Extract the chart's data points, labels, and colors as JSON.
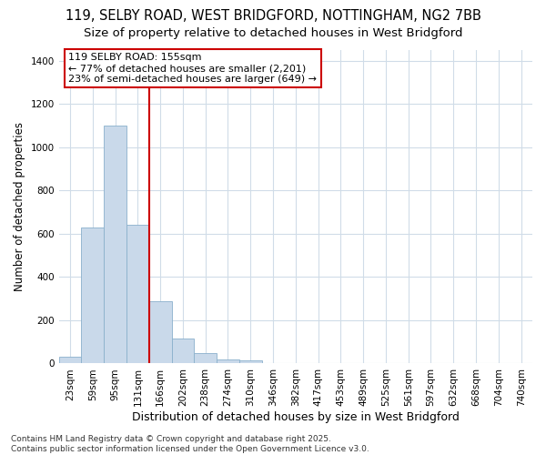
{
  "title_line1": "119, SELBY ROAD, WEST BRIDGFORD, NOTTINGHAM, NG2 7BB",
  "title_line2": "Size of property relative to detached houses in West Bridgford",
  "xlabel": "Distribution of detached houses by size in West Bridgford",
  "ylabel": "Number of detached properties",
  "categories": [
    "23sqm",
    "59sqm",
    "95sqm",
    "131sqm",
    "166sqm",
    "202sqm",
    "238sqm",
    "274sqm",
    "310sqm",
    "346sqm",
    "382sqm",
    "417sqm",
    "453sqm",
    "489sqm",
    "525sqm",
    "561sqm",
    "597sqm",
    "632sqm",
    "668sqm",
    "704sqm",
    "740sqm"
  ],
  "values": [
    30,
    630,
    1100,
    640,
    290,
    115,
    50,
    20,
    15,
    0,
    0,
    0,
    0,
    0,
    0,
    0,
    0,
    0,
    0,
    0,
    0
  ],
  "bar_color": "#c9d9ea",
  "bar_edge_color": "#8ab0cc",
  "vline_x": 3.5,
  "vline_color": "#cc0000",
  "ylim": [
    0,
    1450
  ],
  "yticks": [
    0,
    200,
    400,
    600,
    800,
    1000,
    1200,
    1400
  ],
  "annotation_text": "119 SELBY ROAD: 155sqm\n← 77% of detached houses are smaller (2,201)\n23% of semi-detached houses are larger (649) →",
  "annotation_box_color": "#cc0000",
  "footer_line1": "Contains HM Land Registry data © Crown copyright and database right 2025.",
  "footer_line2": "Contains public sector information licensed under the Open Government Licence v3.0.",
  "bg_color": "#ffffff",
  "grid_color": "#d0dce8",
  "title_fontsize": 10.5,
  "subtitle_fontsize": 9.5,
  "xlabel_fontsize": 9,
  "ylabel_fontsize": 8.5,
  "tick_fontsize": 7.5,
  "annot_fontsize": 8,
  "footer_fontsize": 6.5
}
